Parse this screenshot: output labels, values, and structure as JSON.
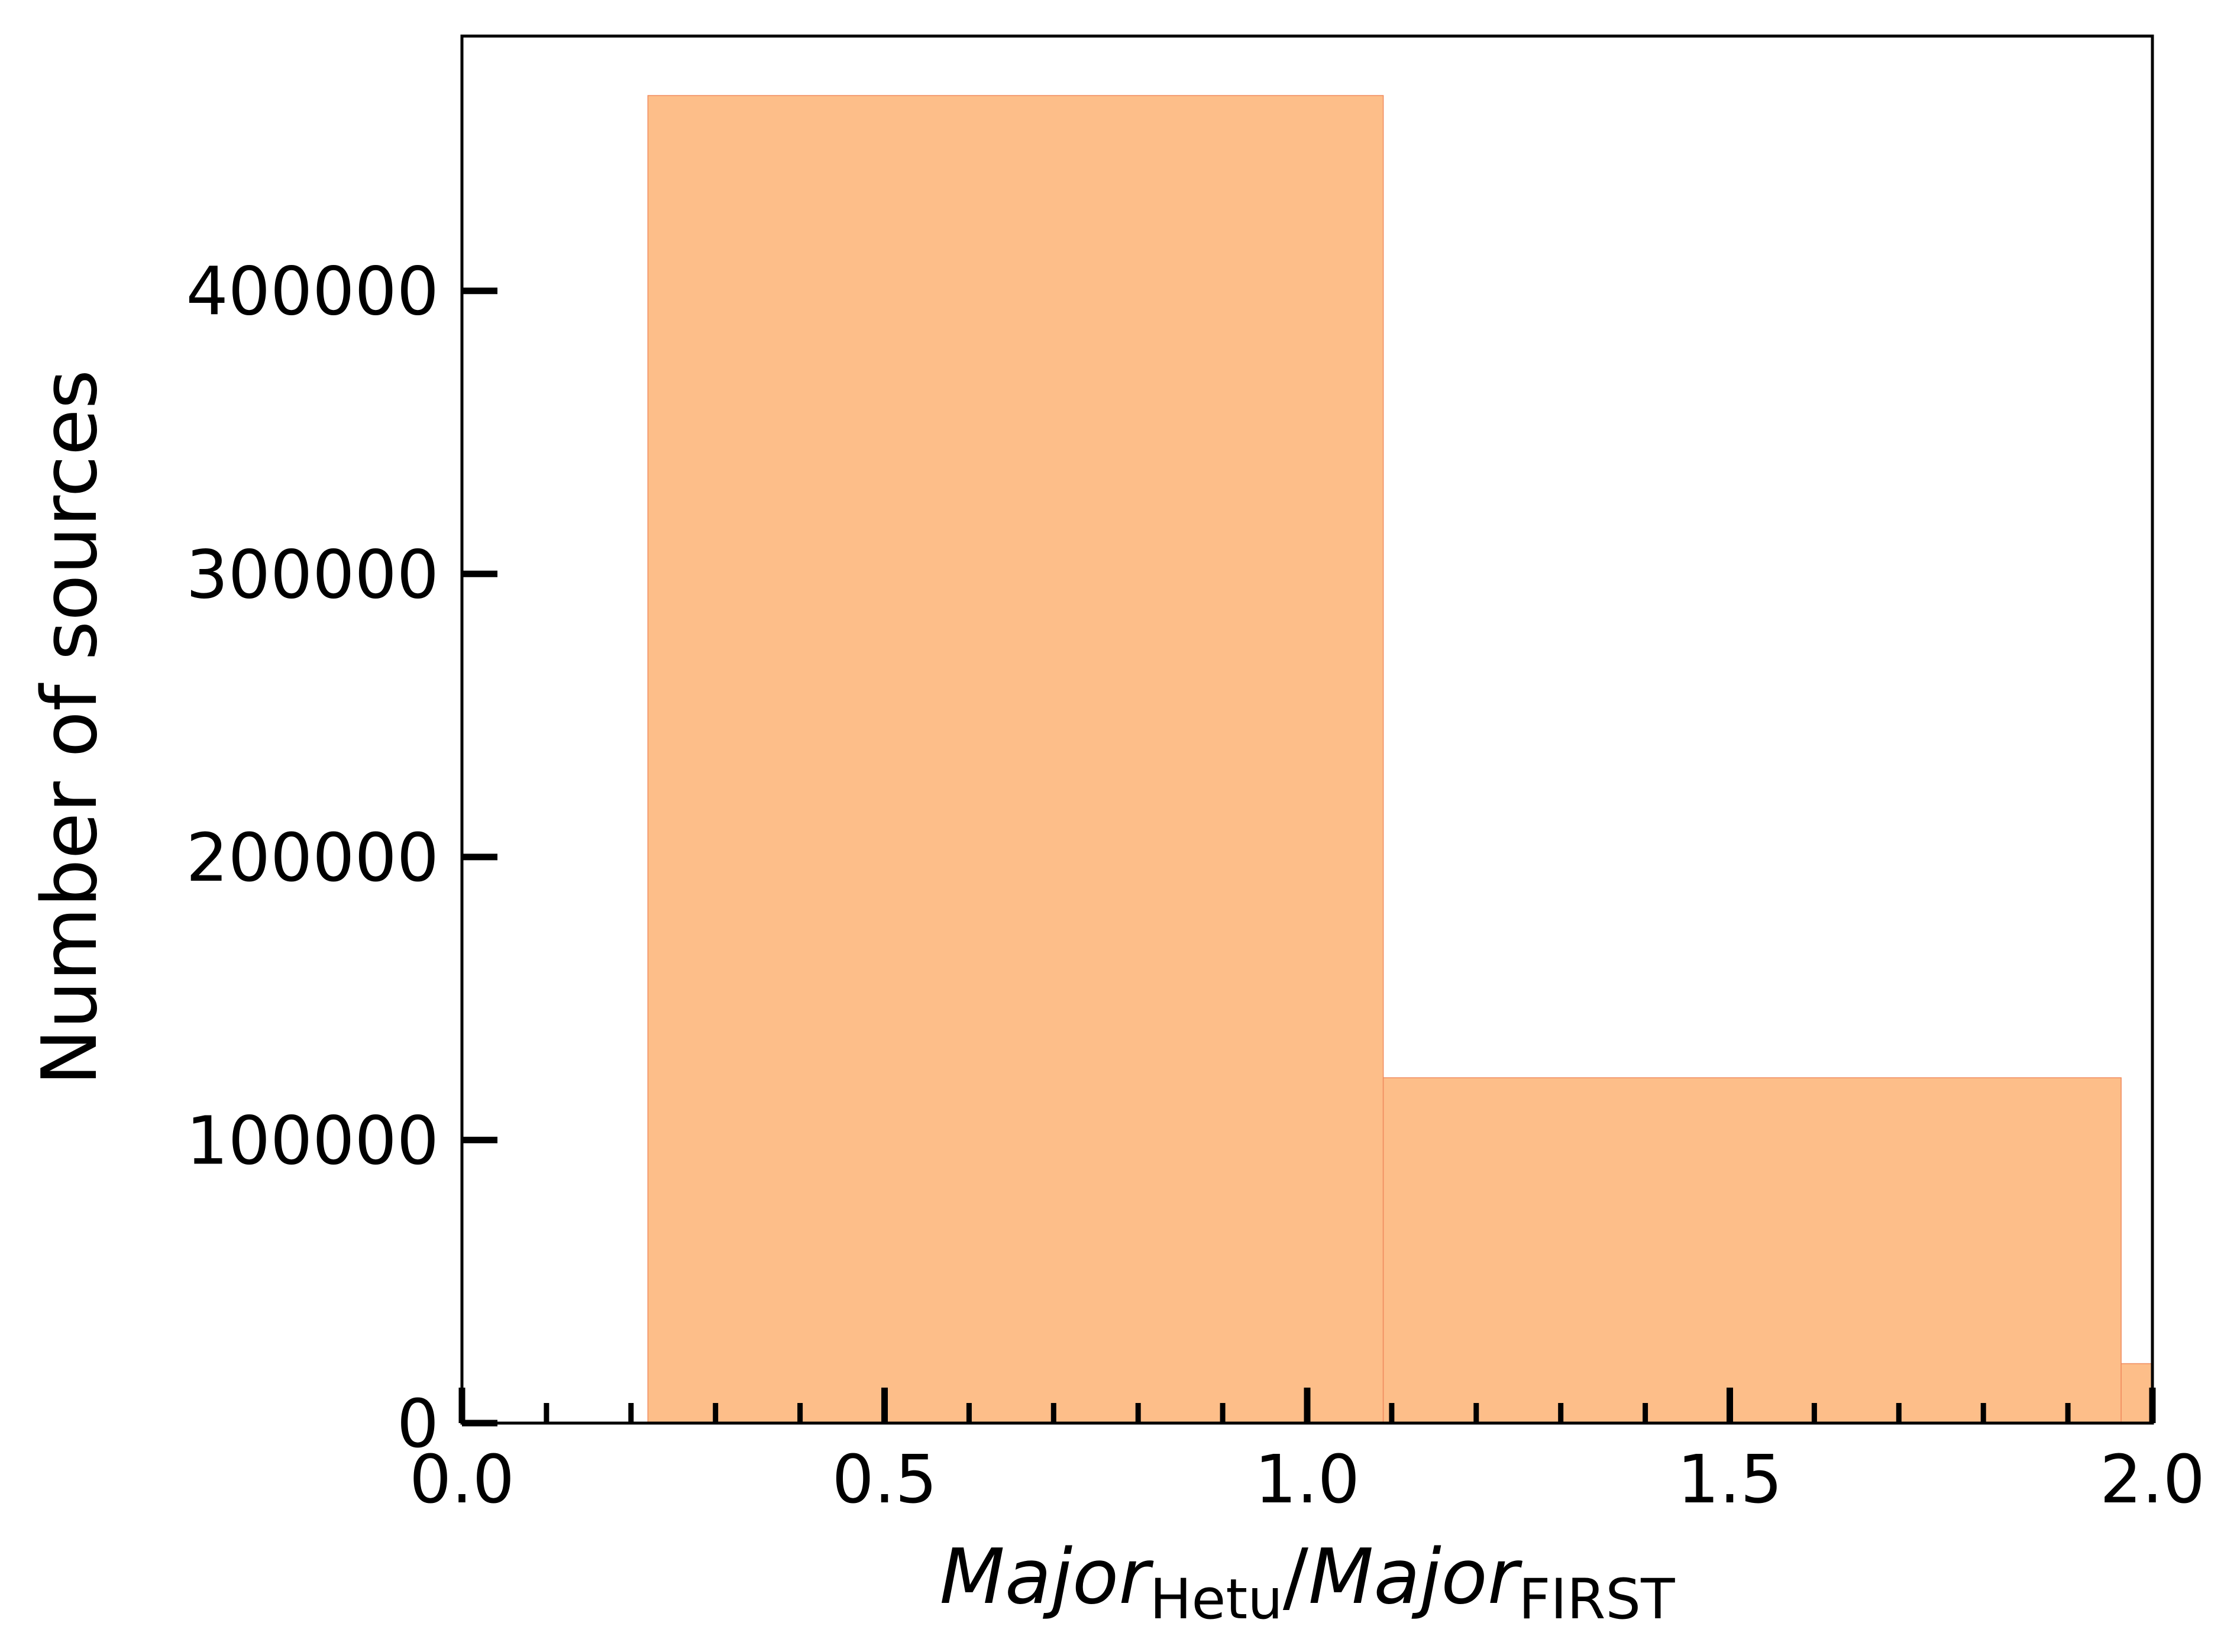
{
  "chart_data": {
    "type": "bar",
    "xlabel": {
      "part1": "Major",
      "sub1": "Hetu",
      "slash": "/",
      "part2": "Major",
      "sub2": "FIRST"
    },
    "ylabel": "Number of sources",
    "xlim": [
      0.0,
      2.0
    ],
    "ylim": [
      0,
      490000
    ],
    "x_ticks": [
      0.0,
      0.5,
      1.0,
      1.5,
      2.0
    ],
    "x_tick_labels": [
      "0.0",
      "0.5",
      "1.0",
      "1.5",
      "2.0"
    ],
    "y_ticks": [
      0,
      100000,
      200000,
      300000,
      400000
    ],
    "y_tick_labels": [
      "0",
      "100000",
      "200000",
      "300000",
      "400000"
    ],
    "bins": [
      {
        "x0": 0.22,
        "x1": 1.09,
        "count": 469000
      },
      {
        "x0": 1.09,
        "x1": 1.963,
        "count": 122000
      },
      {
        "x0": 1.963,
        "x1": 2.0,
        "count": 21000
      }
    ],
    "grid": false,
    "colors": {
      "bar_fill": "#fdbe89",
      "bar_edge": "#f08a5d",
      "axes": "#000000"
    }
  }
}
